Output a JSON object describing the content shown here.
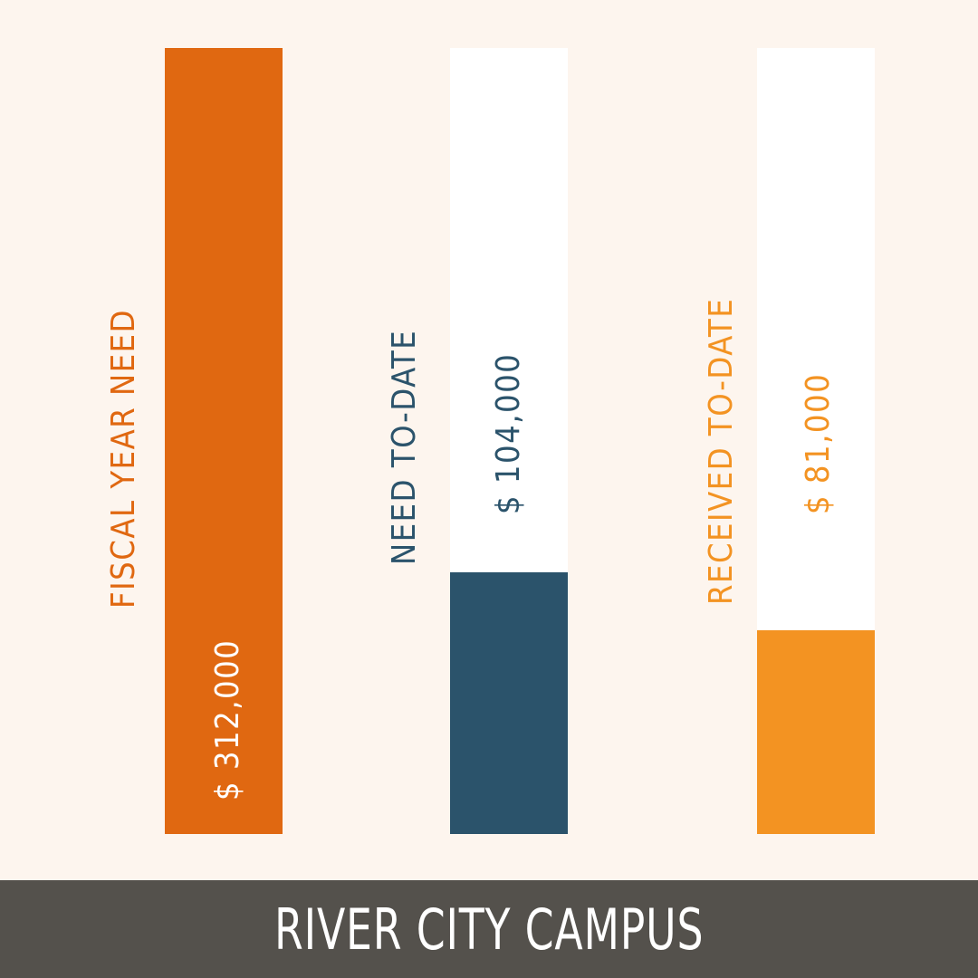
{
  "footer": {
    "title": "RIVER CITY CAMPUS"
  },
  "colors": {
    "background": "#FDF5EE",
    "track": "#FFFFFF",
    "fiscal_year_need": "#E06811",
    "need_to_date": "#2B536B",
    "received_to_date": "#F39322",
    "value_on_bar": "#FFFFFF",
    "footer_bg": "#54514C"
  },
  "chart_data": {
    "type": "bar",
    "title": "",
    "xlabel": "",
    "ylabel": "",
    "categories": [
      "FISCAL YEAR NEED",
      "NEED TO-DATE",
      "RECEIVED TO-DATE"
    ],
    "values": [
      312000,
      104000,
      81000
    ],
    "value_labels": [
      "$ 312,000",
      "$ 104,000",
      "$ 81,000"
    ],
    "ylim": [
      0,
      312000
    ],
    "grid": false,
    "legend": "none"
  }
}
